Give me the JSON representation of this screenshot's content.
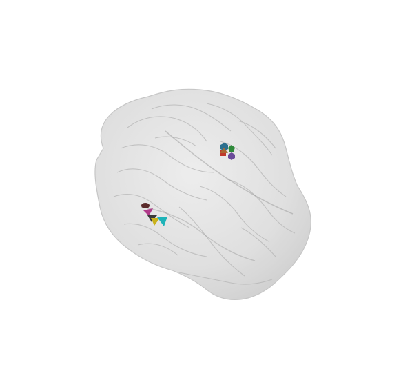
{
  "scene": {
    "background": "#ffffff",
    "surface_color": "#d9d9d9",
    "fold_color": "#a8a8a8",
    "outline_color": "#bdbdbd"
  },
  "markers": [
    {
      "name": "marker-1",
      "cluster": "upper-right",
      "color": "#2c6f8e",
      "shape": "hexagon"
    },
    {
      "name": "marker-2",
      "cluster": "upper-right",
      "color": "#2e8a3a",
      "shape": "pentagon"
    },
    {
      "name": "marker-3",
      "cluster": "upper-right",
      "color": "#c0392b",
      "shape": "square"
    },
    {
      "name": "marker-4",
      "cluster": "upper-right",
      "color": "#6b4c9a",
      "shape": "hexagon"
    },
    {
      "name": "marker-5",
      "cluster": "upper-right",
      "color": "#a86b32",
      "shape": "triangle"
    },
    {
      "name": "marker-6",
      "cluster": "lower-left",
      "color": "#5a2a2a",
      "shape": "cone"
    },
    {
      "name": "marker-7",
      "cluster": "lower-left",
      "color": "#b03a8a",
      "shape": "cone"
    },
    {
      "name": "marker-8",
      "cluster": "lower-left",
      "color": "#3a3a3a",
      "shape": "cone"
    },
    {
      "name": "marker-9",
      "cluster": "lower-left",
      "color": "#c9b21c",
      "shape": "cone"
    },
    {
      "name": "marker-10",
      "cluster": "lower-left",
      "color": "#1fb3b8",
      "shape": "cone"
    }
  ]
}
